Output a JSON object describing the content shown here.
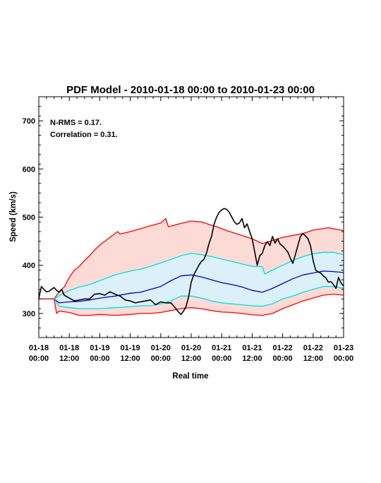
{
  "chart_data": {
    "type": "line",
    "title": "PDF Model - 2010-01-18 00:00 to 2010-01-23 00:00",
    "xlabel": "Real time",
    "ylabel": "Speed (km/s)",
    "ylim": [
      250,
      750
    ],
    "xlim_hours": [
      0,
      120
    ],
    "yticks": [
      300,
      400,
      500,
      600,
      700
    ],
    "xticks": [
      {
        "h": 0,
        "line1": "01-18",
        "line2": "00:00"
      },
      {
        "h": 12,
        "line1": "01-18",
        "line2": "12:00"
      },
      {
        "h": 24,
        "line1": "01-19",
        "line2": "00:00"
      },
      {
        "h": 36,
        "line1": "01-19",
        "line2": "12:00"
      },
      {
        "h": 48,
        "line1": "01-20",
        "line2": "00:00"
      },
      {
        "h": 60,
        "line1": "01-20",
        "line2": "12:00"
      },
      {
        "h": 72,
        "line1": "01-21",
        "line2": "00:00"
      },
      {
        "h": 84,
        "line1": "01-21",
        "line2": "12:00"
      },
      {
        "h": 96,
        "line1": "01-22",
        "line2": "00:00"
      },
      {
        "h": 108,
        "line1": "01-22",
        "line2": "12:00"
      },
      {
        "h": 120,
        "line1": "01-23",
        "line2": "00:00"
      }
    ],
    "annotations": [
      "N-RMS = 0.17.",
      "Correlation = 0.31."
    ],
    "grid": false,
    "x_unit": "hours after 2010-01-18 00:00",
    "series": [
      {
        "role": "outer-upper",
        "color": "#ff0000",
        "x": [
          0,
          6,
          8,
          10,
          12,
          14,
          16,
          18,
          20,
          22,
          24,
          28,
          31,
          32,
          36,
          40,
          44,
          48,
          50,
          51,
          56,
          60,
          64,
          67,
          70,
          74,
          80,
          84,
          88,
          96,
          104,
          108,
          114,
          120
        ],
        "y": [
          330,
          330,
          345,
          355,
          375,
          390,
          398,
          410,
          420,
          432,
          442,
          458,
          470,
          465,
          470,
          476,
          482,
          488,
          497,
          480,
          487,
          492,
          490,
          485,
          480,
          472,
          462,
          455,
          445,
          458,
          466,
          473,
          478,
          472
        ]
      },
      {
        "role": "inner-upper",
        "color": "#00e0e0",
        "x": [
          0,
          6,
          9,
          12,
          16,
          20,
          24,
          30,
          36,
          40,
          44,
          48,
          52,
          56,
          60,
          64,
          68,
          72,
          76,
          80,
          84,
          88,
          89,
          92,
          96,
          100,
          104,
          108,
          112,
          116,
          120
        ],
        "y": [
          330,
          330,
          340,
          348,
          355,
          360,
          368,
          380,
          388,
          392,
          398,
          405,
          412,
          420,
          425,
          422,
          418,
          413,
          408,
          403,
          398,
          397,
          382,
          390,
          400,
          410,
          418,
          424,
          427,
          427,
          422
        ]
      },
      {
        "role": "median",
        "color": "#0000cc",
        "x": [
          0,
          6,
          8,
          12,
          16,
          20,
          24,
          30,
          36,
          40,
          44,
          48,
          52,
          56,
          60,
          64,
          68,
          72,
          76,
          80,
          84,
          88,
          90,
          92,
          96,
          100,
          104,
          108,
          112,
          116,
          120
        ],
        "y": [
          330,
          330,
          322,
          324,
          325,
          328,
          332,
          336,
          342,
          344,
          350,
          356,
          368,
          378,
          380,
          376,
          370,
          364,
          360,
          355,
          348,
          344,
          348,
          352,
          362,
          372,
          380,
          384,
          388,
          387,
          385
        ]
      },
      {
        "role": "inner-lower",
        "color": "#00e0e0",
        "x": [
          0,
          6,
          8,
          12,
          16,
          20,
          24,
          30,
          36,
          40,
          44,
          48,
          52,
          56,
          60,
          64,
          68,
          72,
          76,
          80,
          84,
          88,
          92,
          96,
          100,
          104,
          108,
          112,
          116,
          120
        ],
        "y": [
          330,
          330,
          315,
          312,
          310,
          310,
          310,
          312,
          314,
          316,
          316,
          320,
          326,
          336,
          336,
          332,
          326,
          322,
          320,
          318,
          316,
          315,
          320,
          330,
          336,
          344,
          350,
          356,
          356,
          352
        ]
      },
      {
        "role": "outer-lower",
        "color": "#ff0000",
        "x": [
          0,
          6,
          7,
          8,
          12,
          16,
          20,
          24,
          30,
          36,
          40,
          44,
          48,
          52,
          56,
          60,
          64,
          68,
          72,
          76,
          80,
          84,
          88,
          92,
          96,
          100,
          104,
          108,
          112,
          116,
          120
        ],
        "y": [
          330,
          330,
          300,
          305,
          302,
          296,
          296,
          298,
          296,
          298,
          300,
          300,
          302,
          306,
          310,
          312,
          310,
          306,
          303,
          302,
          300,
          297,
          296,
          300,
          310,
          318,
          326,
          332,
          338,
          340,
          338
        ]
      },
      {
        "role": "observed",
        "color": "#000000",
        "x": [
          0,
          0.5,
          1,
          2,
          3,
          4,
          5,
          6,
          7,
          8,
          9,
          10,
          12,
          14,
          16,
          18,
          20,
          22,
          24,
          26,
          28,
          30,
          32,
          34,
          36,
          38,
          40,
          42,
          44,
          46,
          48,
          50,
          52,
          54,
          55,
          56,
          57,
          58,
          59,
          60,
          61,
          62,
          63,
          64,
          65,
          66,
          67,
          68,
          69,
          70,
          71,
          72,
          73,
          74,
          75,
          76,
          77,
          78,
          79,
          80,
          81,
          82,
          83,
          84,
          85,
          86,
          87,
          88,
          89,
          90,
          91,
          92,
          93,
          94,
          95,
          96,
          97,
          98,
          99,
          100,
          101,
          102,
          103,
          104,
          105,
          106,
          107,
          108,
          109,
          110,
          111,
          112,
          113,
          114,
          115,
          116,
          117,
          118,
          119,
          120
        ],
        "y": [
          330,
          344,
          356,
          350,
          345,
          346,
          350,
          354,
          348,
          344,
          350,
          338,
          332,
          326,
          328,
          330,
          330,
          340,
          341,
          338,
          345,
          340,
          336,
          328,
          326,
          322,
          324,
          326,
          328,
          318,
          324,
          322,
          322,
          310,
          303,
          298,
          305,
          315,
          335,
          365,
          380,
          390,
          400,
          408,
          412,
          425,
          445,
          460,
          485,
          500,
          510,
          515,
          518,
          516,
          510,
          500,
          490,
          485,
          488,
          497,
          478,
          486,
          470,
          455,
          428,
          400,
          420,
          425,
          441,
          449,
          441,
          460,
          446,
          455,
          444,
          440,
          434,
          428,
          415,
          404,
          422,
          441,
          460,
          466,
          461,
          455,
          440,
          410,
          390,
          386,
          384,
          378,
          374,
          365,
          366,
          360,
          352,
          375,
          363,
          357
        ]
      }
    ]
  }
}
